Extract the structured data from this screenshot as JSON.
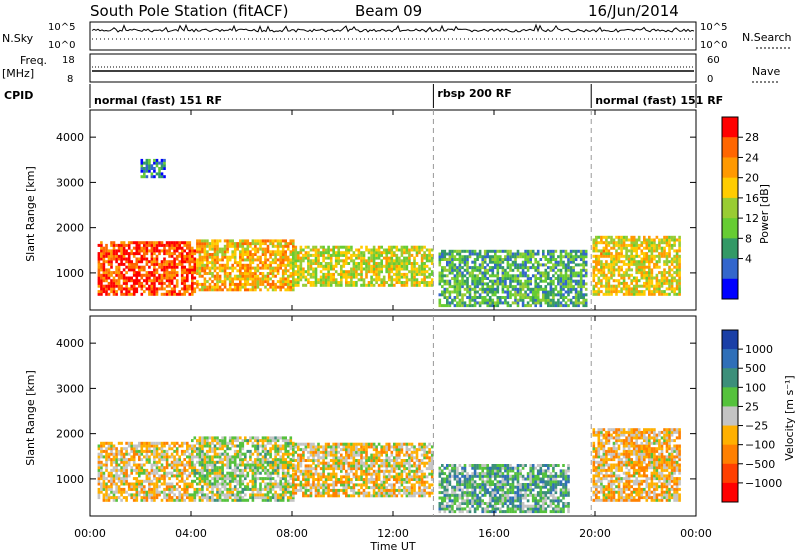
{
  "header": {
    "station_title": "South Pole Station (fitACF)",
    "beam": "Beam 09",
    "date": "16/Jun/2014"
  },
  "top_panels": {
    "nsky_label": "N.Sky",
    "nsky_ticks": [
      "10^5",
      "10^0"
    ],
    "nsearch_label": "N.Search",
    "nsearch_ticks": [
      "10^5",
      "10^0"
    ],
    "freq_label": "Freq.",
    "freq_unit": "[MHz]",
    "freq_ticks": [
      "18",
      "8"
    ],
    "nave_label": "Nave",
    "nave_ticks": [
      "60",
      "0"
    ],
    "cpid_label": "CPID",
    "cpid_segments": [
      {
        "label": "normal (fast) 151 RF",
        "start_hour": 0,
        "end_hour": 13.6
      },
      {
        "label": "rbsp 200 RF",
        "start_hour": 13.6,
        "end_hour": 19.85
      },
      {
        "label": "normal (fast) 151 RF",
        "start_hour": 19.85,
        "end_hour": 24
      }
    ]
  },
  "colorbars": {
    "power": {
      "label": "Power [dB]",
      "ticks": [
        "28",
        "24",
        "20",
        "16",
        "12",
        "8",
        "4"
      ],
      "colors": [
        "#ff0000",
        "#ff6600",
        "#ff9900",
        "#ffcc00",
        "#99cc33",
        "#66cc33",
        "#339966",
        "#3366cc",
        "#0000ff"
      ]
    },
    "velocity": {
      "label": "Velocity [m s⁻¹]",
      "ticks": [
        "1000",
        "500",
        "100",
        "25",
        "−25",
        "−100",
        "−500",
        "−1000"
      ],
      "colors": [
        "#1a3fa6",
        "#2f6fb8",
        "#3c8f7a",
        "#55c23c",
        "#c4c4c4",
        "#ffb000",
        "#ff8000",
        "#ff4000",
        "#ff0000"
      ]
    }
  },
  "axes": {
    "y_label": "Slant Range [km]",
    "y_ticks": [
      "4000",
      "3000",
      "2000",
      "1000"
    ],
    "x_label": "Time UT",
    "x_ticks": [
      "00:00",
      "04:00",
      "08:00",
      "12:00",
      "16:00",
      "20:00",
      "00:00"
    ]
  },
  "chart_data": [
    {
      "type": "heatmap",
      "title": "Power",
      "xlabel": "Time UT",
      "ylabel": "Slant Range [km]",
      "xlim": [
        0,
        24
      ],
      "ylim": [
        180,
        4600
      ],
      "colorbar_label": "Power [dB]",
      "colorbar_range": [
        0,
        30
      ],
      "regions": [
        {
          "t_start": 0.3,
          "t_end": 4.2,
          "r_min": 500,
          "r_max": 1700,
          "value": 26
        },
        {
          "t_start": 4.2,
          "t_end": 8.0,
          "r_min": 600,
          "r_max": 1700,
          "value": 20
        },
        {
          "t_start": 8.0,
          "t_end": 13.5,
          "r_min": 700,
          "r_max": 1600,
          "value": 16
        },
        {
          "t_start": 13.8,
          "t_end": 19.7,
          "r_min": 250,
          "r_max": 1500,
          "value": 10
        },
        {
          "t_start": 19.9,
          "t_end": 23.4,
          "r_min": 500,
          "r_max": 1800,
          "value": 18
        },
        {
          "t_start": 2.0,
          "t_end": 3.0,
          "r_min": 3100,
          "r_max": 3500,
          "value": 6
        }
      ]
    },
    {
      "type": "heatmap",
      "title": "Velocity",
      "xlabel": "Time UT",
      "ylabel": "Slant Range [km]",
      "xlim": [
        0,
        24
      ],
      "ylim": [
        180,
        4600
      ],
      "colorbar_label": "Velocity [m s⁻¹]",
      "colorbar_range": [
        -1000,
        1000
      ],
      "regions": [
        {
          "t_start": 0.3,
          "t_end": 4.0,
          "r_min": 500,
          "r_max": 1800,
          "value": -150
        },
        {
          "t_start": 4.0,
          "t_end": 8.0,
          "r_min": 500,
          "r_max": 1900,
          "value": 50
        },
        {
          "t_start": 8.0,
          "t_end": 13.5,
          "r_min": 600,
          "r_max": 1800,
          "value": -120
        },
        {
          "t_start": 13.8,
          "t_end": 19.0,
          "r_min": 250,
          "r_max": 1300,
          "value": 300
        },
        {
          "t_start": 19.9,
          "t_end": 23.4,
          "r_min": 500,
          "r_max": 2100,
          "value": -200
        }
      ]
    }
  ]
}
